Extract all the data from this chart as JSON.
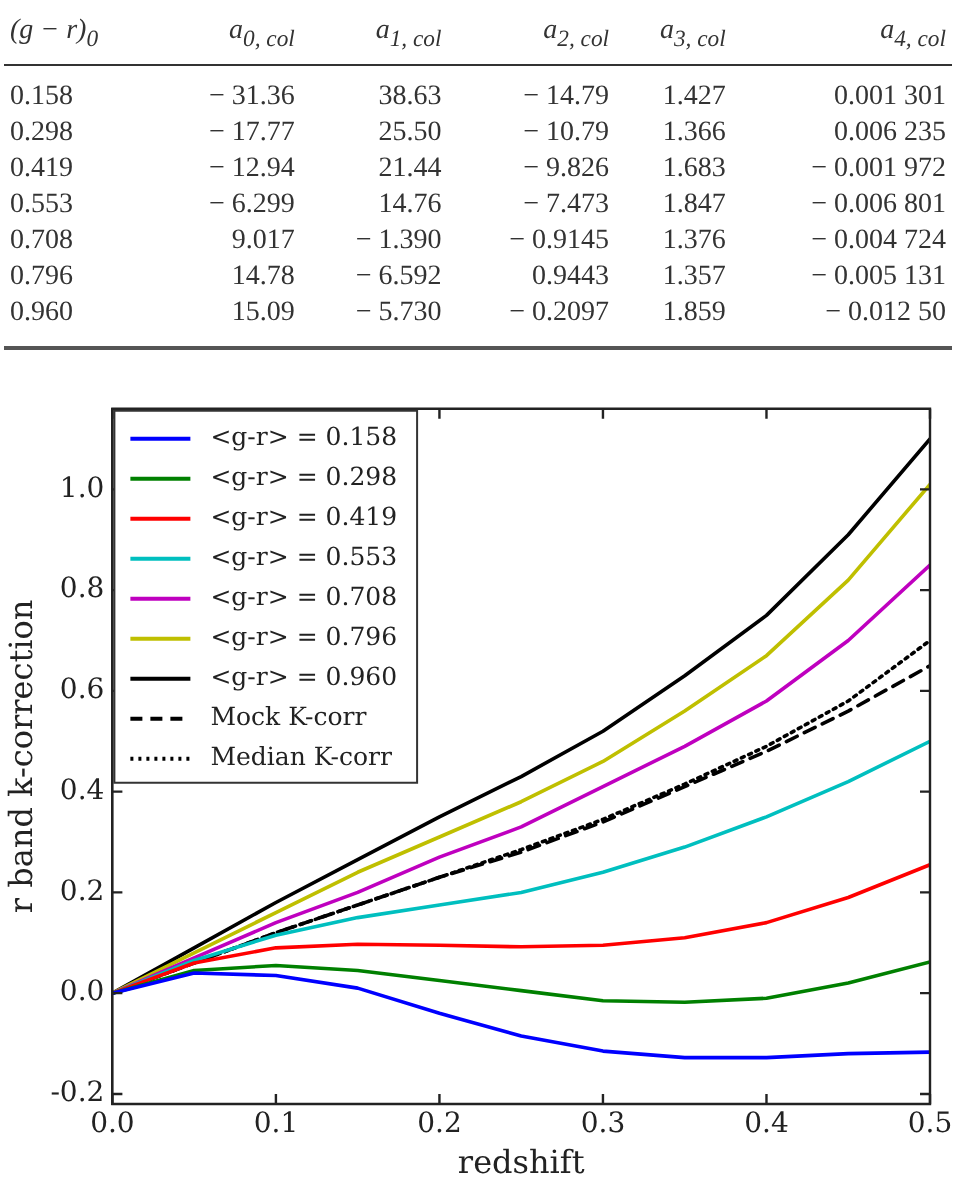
{
  "chart_data": [
    {
      "type": "other",
      "annotations": [
        "(g − r)$_{0}$",
        "a$_{0, col}$",
        "a$_{1, col}$",
        "a$_{2, col}$",
        "a$_{3, col}$",
        "a$_{4, col}$",
        "0.158",
        "− 31.36",
        "38.63",
        "− 14.79",
        "1.427",
        "0.001 301",
        "0.298",
        "− 17.77",
        "25.50",
        "− 10.79",
        "1.366",
        "0.006 235",
        "0.419",
        "− 12.94",
        "21.44",
        "− 9.826",
        "1.683",
        "− 0.001 972",
        "0.553",
        "− 6.299",
        "14.76",
        "− 7.473",
        "1.847",
        "− 0.006 801",
        "0.708",
        "9.017",
        "− 1.390",
        "− 0.9145",
        "1.376",
        "− 0.004 724",
        "0.796",
        "14.78",
        "− 6.592",
        "0.9443",
        "1.357",
        "− 0.005 131",
        "0.960",
        "15.09",
        "− 5.730",
        "− 0.2097",
        "1.859",
        "− 0.012 50"
      ]
    },
    {
      "type": "line",
      "xlabel": "redshift",
      "ylabel": "r band k-correction",
      "x": [
        0,
        0.05,
        0.1,
        0.15,
        0.2,
        0.25,
        0.3,
        0.35,
        0.4,
        0.45,
        0.5
      ],
      "xlim": [
        0,
        0.5
      ],
      "ylim": [
        -0.22,
        1.16
      ],
      "xticks": [
        {
          "value": 0,
          "label": "0.0"
        },
        {
          "value": 0.1,
          "label": "0.1"
        },
        {
          "value": 0.2,
          "label": "0.2"
        },
        {
          "value": 0.3,
          "label": "0.3"
        },
        {
          "value": 0.4,
          "label": "0.4"
        },
        {
          "value": 0.5,
          "label": "0.5"
        }
      ],
      "yticks": [
        {
          "value": -0.2,
          "label": "-0.2"
        },
        {
          "value": 0,
          "label": "0.0"
        },
        {
          "value": 0.2,
          "label": "0.2"
        },
        {
          "value": 0.4,
          "label": "0.4"
        },
        {
          "value": 0.6,
          "label": "0.6"
        },
        {
          "value": 0.8,
          "label": "0.8"
        },
        {
          "value": 1.0,
          "label": "1.0"
        }
      ],
      "legend": "top left",
      "marker": "none",
      "series": [
        {
          "name": "<g-r> = 0.158",
          "color": "#0000ff",
          "values": [
            0,
            0.04,
            0.035,
            0.01,
            -0.04,
            -0.085,
            -0.115,
            -0.128,
            -0.128,
            -0.12,
            -0.117
          ]
        },
        {
          "name": "<g-r> = 0.298",
          "color": "#008000",
          "values": [
            0,
            0.045,
            0.055,
            0.045,
            0.025,
            0.005,
            -0.015,
            -0.018,
            -0.01,
            0.02,
            0.062
          ]
        },
        {
          "name": "<g-r> = 0.419",
          "color": "#ff0000",
          "values": [
            0,
            0.06,
            0.09,
            0.097,
            0.095,
            0.092,
            0.095,
            0.11,
            0.14,
            0.19,
            0.255
          ]
        },
        {
          "name": "<g-r> = 0.553",
          "color": "#00bfbf",
          "values": [
            0,
            0.065,
            0.115,
            0.15,
            0.175,
            0.2,
            0.24,
            0.29,
            0.35,
            0.42,
            0.5
          ]
        },
        {
          "name": "<g-r> = 0.708",
          "color": "#bf00bf",
          "values": [
            0,
            0.07,
            0.14,
            0.2,
            0.27,
            0.33,
            0.41,
            0.49,
            0.58,
            0.7,
            0.85
          ]
        },
        {
          "name": "<g-r> = 0.796",
          "color": "#bfbf00",
          "values": [
            0,
            0.08,
            0.16,
            0.24,
            0.31,
            0.38,
            0.46,
            0.56,
            0.67,
            0.82,
            1.01
          ]
        },
        {
          "name": "<g-r> = 0.960",
          "color": "#000000",
          "values": [
            0,
            0.09,
            0.18,
            0.265,
            0.35,
            0.43,
            0.52,
            0.63,
            0.75,
            0.91,
            1.1
          ]
        },
        {
          "name": "Mock K-corr",
          "color": "#000000",
          "line_style": "dashed",
          "values": [
            0,
            0.06,
            0.12,
            0.175,
            0.23,
            0.28,
            0.34,
            0.41,
            0.48,
            0.56,
            0.65
          ]
        },
        {
          "name": "Median K-corr",
          "color": "#000000",
          "line_style": "dotted",
          "values": [
            0,
            0.06,
            0.12,
            0.175,
            0.23,
            0.285,
            0.345,
            0.415,
            0.49,
            0.58,
            0.7
          ]
        }
      ]
    }
  ]
}
